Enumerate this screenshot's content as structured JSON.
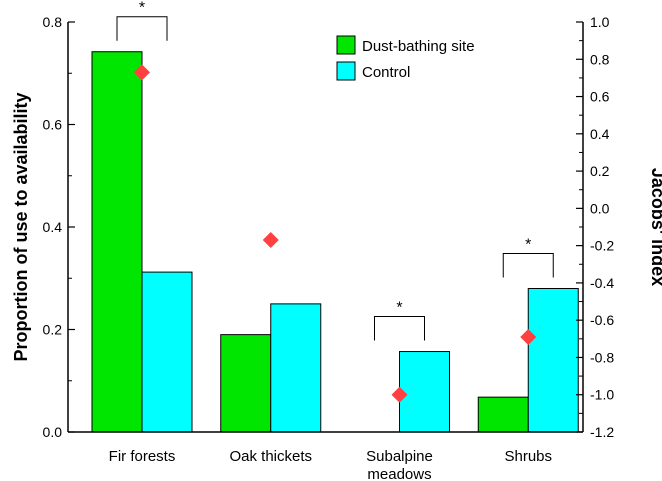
{
  "chart_data": {
    "type": "bar",
    "categories": [
      [
        "Fir forests"
      ],
      [
        "Oak thickets"
      ],
      [
        "Subalpine",
        "meadows"
      ],
      [
        "Shrubs"
      ]
    ],
    "series": [
      {
        "name": "Dust-bathing site",
        "values": [
          0.742,
          0.19,
          0.0,
          0.068
        ],
        "color": "#00e600"
      },
      {
        "name": "Control",
        "values": [
          0.312,
          0.25,
          0.157,
          0.28
        ],
        "color": "#00ffff"
      }
    ],
    "jacobs_index": {
      "values": [
        0.73,
        -0.17,
        -1.0,
        -0.69
      ],
      "marker": "diamond",
      "color": "#ff4040"
    },
    "significance": [
      {
        "category_index": 0,
        "label": "*"
      },
      {
        "category_index": 2,
        "label": "*"
      },
      {
        "category_index": 3,
        "label": "*"
      }
    ],
    "ylabel": "Proportion of use to availability",
    "y2label": "Jacobs' index",
    "ylim": [
      0,
      0.8
    ],
    "y_ticks": [
      "0.0",
      "0.2",
      "0.4",
      "0.6",
      "0.8"
    ],
    "y2lim": [
      -1.2,
      1.0
    ],
    "y2_ticks": [
      "-1.2",
      "-1.0",
      "-0.8",
      "-0.6",
      "-0.4",
      "-0.2",
      "0.0",
      "0.2",
      "0.4",
      "0.6",
      "0.8",
      "1.0"
    ],
    "legend_position": "top-right",
    "grid": false
  }
}
